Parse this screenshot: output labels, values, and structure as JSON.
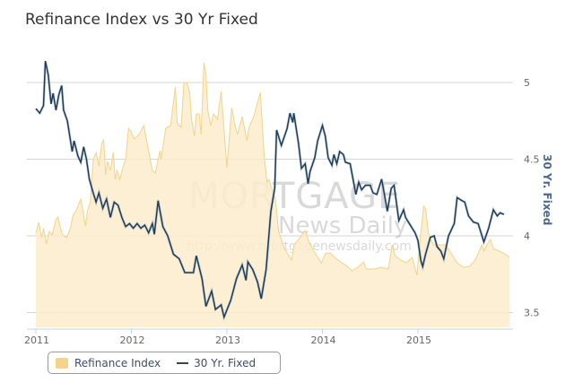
{
  "chart_data": {
    "type": "line",
    "title": "Refinance Index vs 30 Yr Fixed",
    "xlabel": "",
    "ylabel_right": "30 Yr. Fixed",
    "x_ticks": [
      "2011",
      "2012",
      "2013",
      "2014",
      "2015"
    ],
    "x_range": [
      2011,
      2015.98
    ],
    "y_right_ticks": [
      "5",
      "4.5",
      "4",
      "3.5"
    ],
    "y_right_range": [
      3.5,
      5
    ],
    "refi_range_hidden": [
      0,
      6000
    ],
    "grid": true,
    "legend_placement": "bottom-left",
    "legend": [
      "Refinance Index",
      "30 Yr. Fixed"
    ],
    "colors": {
      "refi_fill": "#fbeccb",
      "refi_line": "#f2d48a",
      "rate_line": "#1f3d57"
    },
    "watermark": {
      "line1": "MORTGAGE",
      "line2": "News Daily",
      "url": "http://www.mortgagenewsdaily.com"
    },
    "series": [
      {
        "name": "Refinance Index",
        "type": "area",
        "points": [
          [
            2011.0,
            2100
          ],
          [
            2011.03,
            2340
          ],
          [
            2011.06,
            2000
          ],
          [
            2011.08,
            2200
          ],
          [
            2011.11,
            1860
          ],
          [
            2011.14,
            2140
          ],
          [
            2011.17,
            2060
          ],
          [
            2011.21,
            2400
          ],
          [
            2011.23,
            2460
          ],
          [
            2011.26,
            2200
          ],
          [
            2011.28,
            2060
          ],
          [
            2011.32,
            2000
          ],
          [
            2011.36,
            2200
          ],
          [
            2011.39,
            2500
          ],
          [
            2011.42,
            2600
          ],
          [
            2011.47,
            2860
          ],
          [
            2011.52,
            2260
          ],
          [
            2011.54,
            2600
          ],
          [
            2011.57,
            2800
          ],
          [
            2011.6,
            3740
          ],
          [
            2011.63,
            3900
          ],
          [
            2011.66,
            3600
          ],
          [
            2011.69,
            4100
          ],
          [
            2011.71,
            4180
          ],
          [
            2011.73,
            3400
          ],
          [
            2011.75,
            3700
          ],
          [
            2011.78,
            3500
          ],
          [
            2011.81,
            3900
          ],
          [
            2011.83,
            3300
          ],
          [
            2011.85,
            3500
          ],
          [
            2011.88,
            3300
          ],
          [
            2011.91,
            3560
          ],
          [
            2011.94,
            3740
          ],
          [
            2011.97,
            4440
          ],
          [
            2012.0,
            4360
          ],
          [
            2012.03,
            4200
          ],
          [
            2012.08,
            4300
          ],
          [
            2012.13,
            4500
          ],
          [
            2012.22,
            3500
          ],
          [
            2012.25,
            3440
          ],
          [
            2012.3,
            3940
          ],
          [
            2012.31,
            3740
          ],
          [
            2012.36,
            4440
          ],
          [
            2012.41,
            4500
          ],
          [
            2012.46,
            5360
          ],
          [
            2012.48,
            4560
          ],
          [
            2012.52,
            4460
          ],
          [
            2012.55,
            5460
          ],
          [
            2012.58,
            5460
          ],
          [
            2012.61,
            5240
          ],
          [
            2012.63,
            4640
          ],
          [
            2012.66,
            4260
          ],
          [
            2012.68,
            4760
          ],
          [
            2012.71,
            4760
          ],
          [
            2012.73,
            4300
          ],
          [
            2012.76,
            5900
          ],
          [
            2012.78,
            5640
          ],
          [
            2012.8,
            4840
          ],
          [
            2012.83,
            4500
          ],
          [
            2012.86,
            4760
          ],
          [
            2012.9,
            4640
          ],
          [
            2012.94,
            5260
          ],
          [
            2013.0,
            3560
          ],
          [
            2013.05,
            4900
          ],
          [
            2013.08,
            4560
          ],
          [
            2013.11,
            4300
          ],
          [
            2013.16,
            4700
          ],
          [
            2013.21,
            4160
          ],
          [
            2013.23,
            4440
          ],
          [
            2013.28,
            4700
          ],
          [
            2013.35,
            5240
          ],
          [
            2013.39,
            3840
          ],
          [
            2013.42,
            3240
          ],
          [
            2013.44,
            3300
          ],
          [
            2013.46,
            3160
          ],
          [
            2013.51,
            2840
          ],
          [
            2013.54,
            2160
          ],
          [
            2013.6,
            1760
          ],
          [
            2013.68,
            1500
          ],
          [
            2013.7,
            1840
          ],
          [
            2013.75,
            1960
          ],
          [
            2013.82,
            2160
          ],
          [
            2013.86,
            1900
          ],
          [
            2013.91,
            1700
          ],
          [
            2013.99,
            1440
          ],
          [
            2014.03,
            1640
          ],
          [
            2014.08,
            1660
          ],
          [
            2014.13,
            1560
          ],
          [
            2014.19,
            1460
          ],
          [
            2014.26,
            1360
          ],
          [
            2014.31,
            1260
          ],
          [
            2014.38,
            1360
          ],
          [
            2014.43,
            1460
          ],
          [
            2014.46,
            1300
          ],
          [
            2014.54,
            1300
          ],
          [
            2014.62,
            1340
          ],
          [
            2014.69,
            1300
          ],
          [
            2014.73,
            1840
          ],
          [
            2014.76,
            1600
          ],
          [
            2014.82,
            1500
          ],
          [
            2014.88,
            1440
          ],
          [
            2014.94,
            1560
          ],
          [
            2014.99,
            1160
          ],
          [
            2015.02,
            1900
          ],
          [
            2015.06,
            2700
          ],
          [
            2015.08,
            2640
          ],
          [
            2015.11,
            2100
          ],
          [
            2015.16,
            1840
          ],
          [
            2015.23,
            1840
          ],
          [
            2015.29,
            1840
          ],
          [
            2015.35,
            1640
          ],
          [
            2015.41,
            1440
          ],
          [
            2015.48,
            1340
          ],
          [
            2015.54,
            1360
          ],
          [
            2015.6,
            1500
          ],
          [
            2015.67,
            1840
          ],
          [
            2015.69,
            1700
          ],
          [
            2015.72,
            1840
          ],
          [
            2015.76,
            1960
          ],
          [
            2015.79,
            1760
          ],
          [
            2015.85,
            1700
          ],
          [
            2015.91,
            1640
          ],
          [
            2015.96,
            1560
          ]
        ]
      },
      {
        "name": "30 Yr. Fixed",
        "type": "line",
        "points": [
          [
            2011.0,
            4.83
          ],
          [
            2011.04,
            4.8
          ],
          [
            2011.08,
            4.85
          ],
          [
            2011.1,
            5.14
          ],
          [
            2011.13,
            5.05
          ],
          [
            2011.16,
            4.86
          ],
          [
            2011.18,
            4.93
          ],
          [
            2011.21,
            4.82
          ],
          [
            2011.24,
            4.92
          ],
          [
            2011.27,
            4.98
          ],
          [
            2011.29,
            4.82
          ],
          [
            2011.33,
            4.75
          ],
          [
            2011.38,
            4.55
          ],
          [
            2011.4,
            4.62
          ],
          [
            2011.44,
            4.52
          ],
          [
            2011.47,
            4.48
          ],
          [
            2011.5,
            4.58
          ],
          [
            2011.53,
            4.5
          ],
          [
            2011.56,
            4.37
          ],
          [
            2011.6,
            4.28
          ],
          [
            2011.63,
            4.22
          ],
          [
            2011.66,
            4.28
          ],
          [
            2011.7,
            4.18
          ],
          [
            2011.74,
            4.24
          ],
          [
            2011.78,
            4.12
          ],
          [
            2011.82,
            4.22
          ],
          [
            2011.86,
            4.2
          ],
          [
            2011.9,
            4.12
          ],
          [
            2011.94,
            4.06
          ],
          [
            2011.98,
            4.08
          ],
          [
            2012.02,
            4.05
          ],
          [
            2012.06,
            4.08
          ],
          [
            2012.1,
            4.05
          ],
          [
            2012.14,
            4.07
          ],
          [
            2012.18,
            4.02
          ],
          [
            2012.22,
            4.08
          ],
          [
            2012.24,
            4.01
          ],
          [
            2012.28,
            4.23
          ],
          [
            2012.33,
            4.06
          ],
          [
            2012.38,
            4.0
          ],
          [
            2012.44,
            3.88
          ],
          [
            2012.5,
            3.85
          ],
          [
            2012.56,
            3.76
          ],
          [
            2012.65,
            3.76
          ],
          [
            2012.68,
            3.87
          ],
          [
            2012.74,
            3.72
          ],
          [
            2012.78,
            3.54
          ],
          [
            2012.84,
            3.64
          ],
          [
            2012.88,
            3.52
          ],
          [
            2012.94,
            3.55
          ],
          [
            2012.97,
            3.47
          ],
          [
            2013.04,
            3.58
          ],
          [
            2013.1,
            3.72
          ],
          [
            2013.16,
            3.81
          ],
          [
            2013.2,
            3.71
          ],
          [
            2013.22,
            3.83
          ],
          [
            2013.27,
            3.78
          ],
          [
            2013.32,
            3.7
          ],
          [
            2013.36,
            3.59
          ],
          [
            2013.41,
            3.78
          ],
          [
            2013.46,
            4.16
          ],
          [
            2013.5,
            4.31
          ],
          [
            2013.52,
            4.69
          ],
          [
            2013.57,
            4.59
          ],
          [
            2013.63,
            4.7
          ],
          [
            2013.66,
            4.8
          ],
          [
            2013.69,
            4.74
          ],
          [
            2013.7,
            4.8
          ],
          [
            2013.75,
            4.6
          ],
          [
            2013.78,
            4.44
          ],
          [
            2013.82,
            4.47
          ],
          [
            2013.85,
            4.34
          ],
          [
            2013.87,
            4.42
          ],
          [
            2013.92,
            4.51
          ],
          [
            2013.95,
            4.62
          ],
          [
            2014.0,
            4.72
          ],
          [
            2014.03,
            4.65
          ],
          [
            2014.06,
            4.51
          ],
          [
            2014.1,
            4.46
          ],
          [
            2014.12,
            4.53
          ],
          [
            2014.15,
            4.47
          ],
          [
            2014.18,
            4.55
          ],
          [
            2014.22,
            4.53
          ],
          [
            2014.24,
            4.48
          ],
          [
            2014.29,
            4.47
          ],
          [
            2014.32,
            4.37
          ],
          [
            2014.35,
            4.27
          ],
          [
            2014.38,
            4.35
          ],
          [
            2014.41,
            4.3
          ],
          [
            2014.45,
            4.33
          ],
          [
            2014.5,
            4.33
          ],
          [
            2014.53,
            4.28
          ],
          [
            2014.57,
            4.27
          ],
          [
            2014.62,
            4.37
          ],
          [
            2014.64,
            4.3
          ],
          [
            2014.68,
            4.16
          ],
          [
            2014.72,
            4.31
          ],
          [
            2014.75,
            4.33
          ],
          [
            2014.8,
            4.1
          ],
          [
            2014.85,
            4.17
          ],
          [
            2014.87,
            4.12
          ],
          [
            2014.91,
            4.08
          ],
          [
            2014.97,
            4.02
          ],
          [
            2015.0,
            3.97
          ],
          [
            2015.03,
            3.84
          ],
          [
            2015.05,
            3.8
          ],
          [
            2015.08,
            3.88
          ],
          [
            2015.13,
            3.99
          ],
          [
            2015.17,
            4.0
          ],
          [
            2015.2,
            3.93
          ],
          [
            2015.24,
            3.9
          ],
          [
            2015.27,
            3.85
          ],
          [
            2015.32,
            4.0
          ],
          [
            2015.38,
            4.08
          ],
          [
            2015.41,
            4.25
          ],
          [
            2015.46,
            4.23
          ],
          [
            2015.49,
            4.22
          ],
          [
            2015.53,
            4.13
          ],
          [
            2015.58,
            4.09
          ],
          [
            2015.63,
            4.08
          ],
          [
            2015.67,
            4.0
          ],
          [
            2015.69,
            3.96
          ],
          [
            2015.74,
            4.05
          ],
          [
            2015.79,
            4.17
          ],
          [
            2015.83,
            4.13
          ],
          [
            2015.86,
            4.15
          ],
          [
            2015.9,
            4.14
          ]
        ]
      }
    ]
  }
}
